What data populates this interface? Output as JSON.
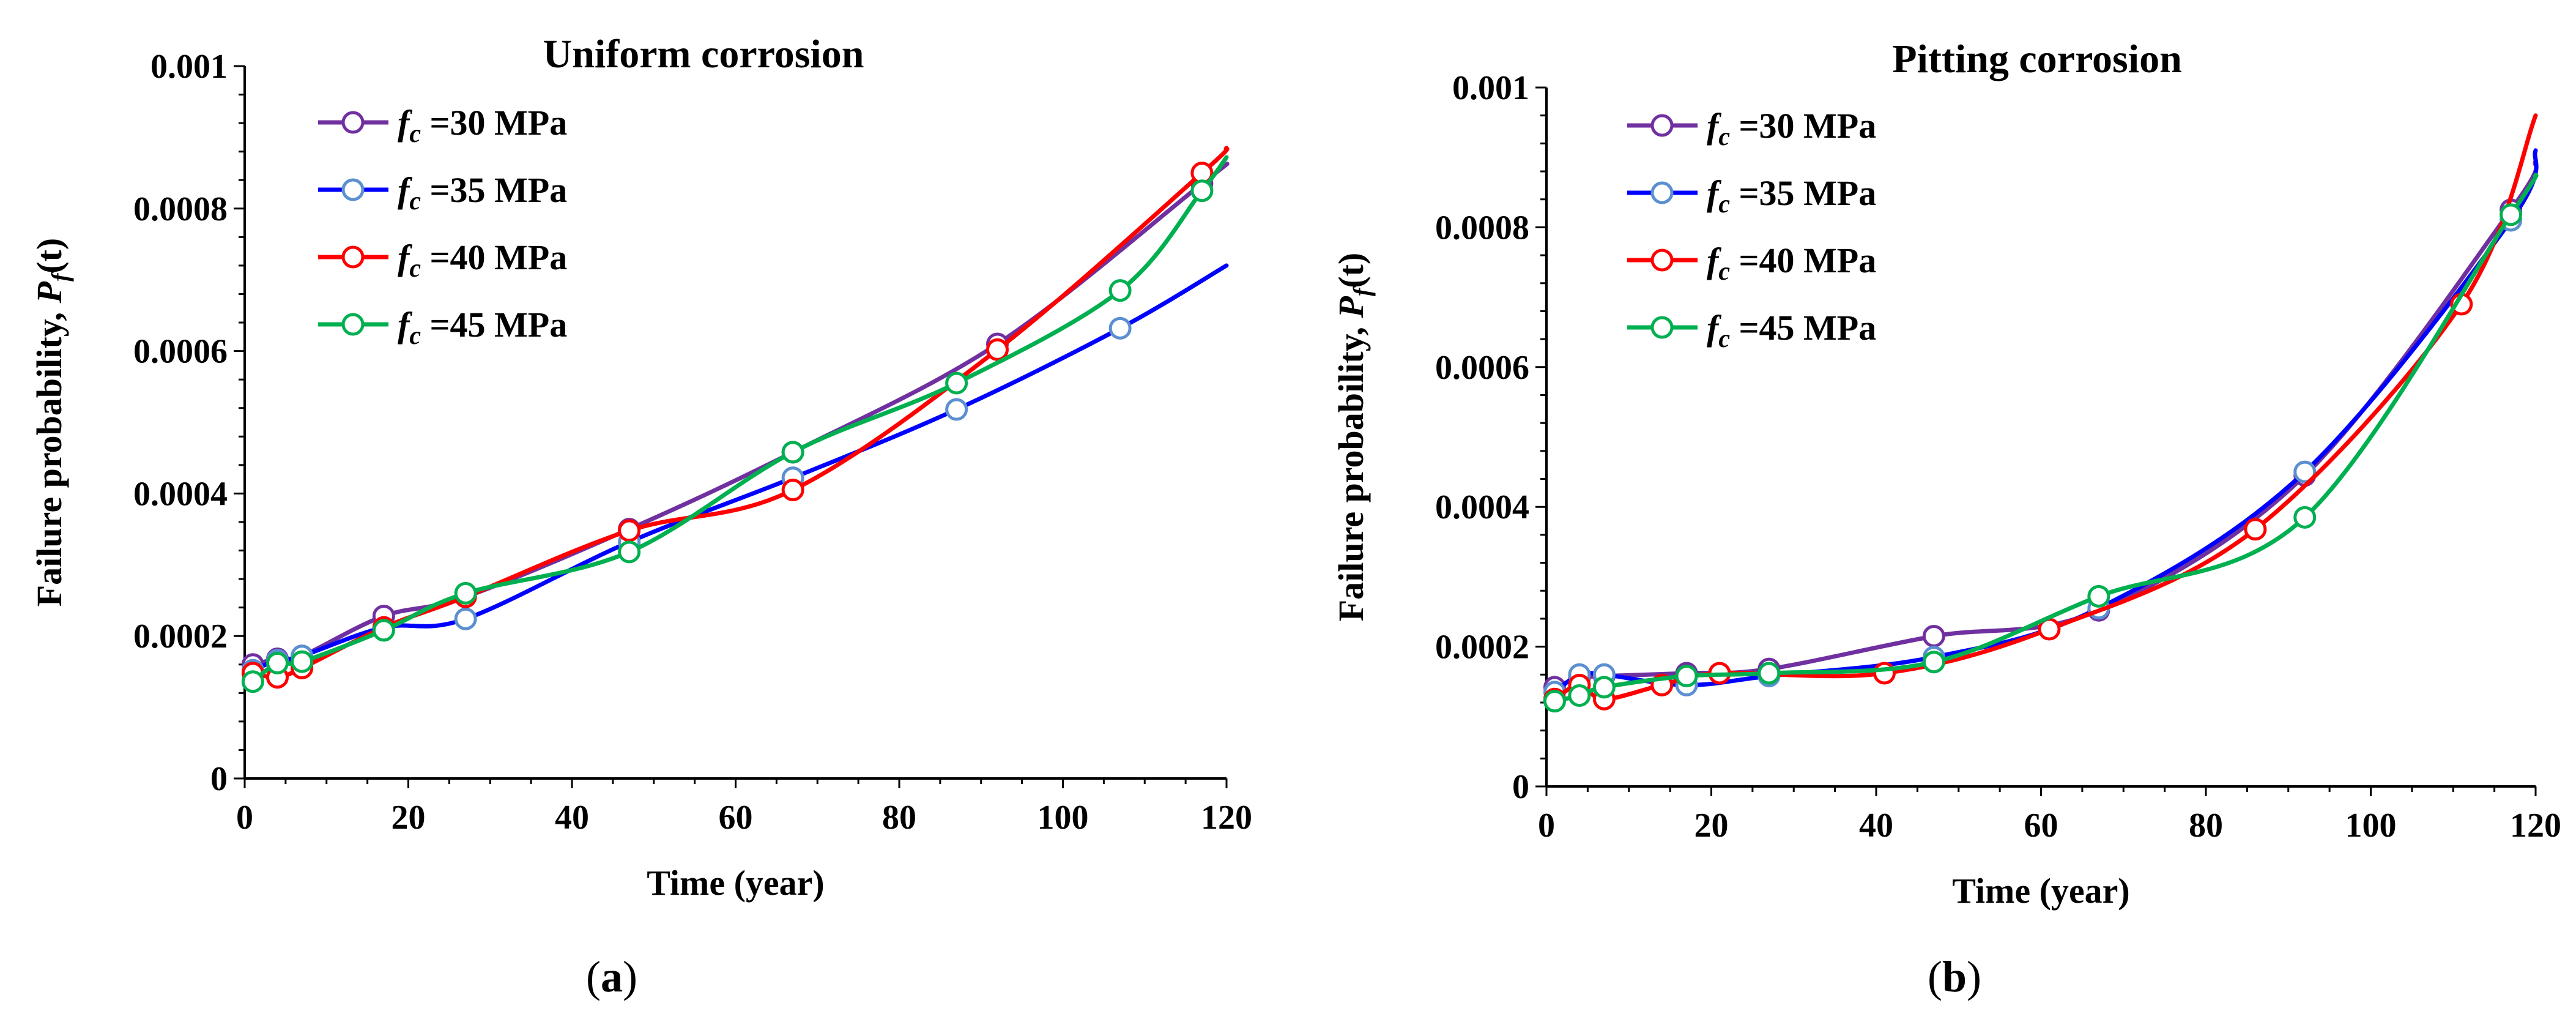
{
  "chart_data": [
    {
      "type": "line",
      "panel_label": "(a)",
      "title": "Uniform corrosion",
      "xlabel": "Time (year)",
      "ylabel_main": "Failure probability, ",
      "ylabel_symbol": "P",
      "ylabel_sub": "f",
      "ylabel_arg": "(t)",
      "xlim": [
        0,
        120
      ],
      "ylim": [
        0,
        0.001
      ],
      "x_ticks": [
        "0",
        "20",
        "40",
        "60",
        "80",
        "100",
        "120"
      ],
      "y_ticks": [
        "0",
        "0.0002",
        "0.0004",
        "0.0006",
        "0.0008",
        "0.001"
      ],
      "legend_position": "top-left",
      "series": [
        {
          "name_symbol": "f",
          "name_sub": "c",
          "name_value": " =30 MPa",
          "color": "#7030a0",
          "x": [
            1,
            4,
            7,
            17,
            27,
            47,
            67,
            92,
            117
          ],
          "y": [
            0.00016,
            0.000168,
            0.000172,
            0.000228,
            0.000255,
            0.00035,
            0.000458,
            0.00061,
            0.000835
          ],
          "line_end": [
            120,
            0.000862
          ]
        },
        {
          "name_symbol": "f",
          "name_sub": "c",
          "name_value": " =35 MPa",
          "color": "#0000ff",
          "marker_color": "#5b8fd0",
          "x": [
            1,
            4,
            7,
            17,
            27,
            47,
            67,
            87,
            107
          ],
          "y": [
            0.000152,
            0.000166,
            0.000172,
            0.000212,
            0.000224,
            0.000332,
            0.000422,
            0.000518,
            0.000632
          ],
          "line_end": [
            120,
            0.00072
          ]
        },
        {
          "name_symbol": "f",
          "name_sub": "c",
          "name_value": " =40 MPa",
          "color": "#ff0000",
          "x": [
            1,
            4,
            7,
            17,
            27,
            47,
            67,
            92,
            117
          ],
          "y": [
            0.000148,
            0.000142,
            0.000155,
            0.000212,
            0.000255,
            0.000348,
            0.000405,
            0.000602,
            0.00085
          ],
          "line_end": [
            120,
            0.000885
          ]
        },
        {
          "name_symbol": "f",
          "name_sub": "c",
          "name_value": " =45 MPa",
          "color": "#00b050",
          "x": [
            1,
            4,
            7,
            17,
            27,
            47,
            67,
            87,
            107,
            117
          ],
          "y": [
            0.000136,
            0.000162,
            0.000164,
            0.000208,
            0.00026,
            0.000318,
            0.000458,
            0.000555,
            0.000685,
            0.000825
          ],
          "line_end": [
            120,
            0.000872
          ]
        }
      ]
    },
    {
      "type": "line",
      "panel_label": "(b)",
      "title": "Pitting corrosion",
      "xlabel": "Time (year)",
      "ylabel_main": "Failure probability, ",
      "ylabel_symbol": "P",
      "ylabel_sub": "f",
      "ylabel_arg": "(t)",
      "xlim": [
        0,
        120
      ],
      "ylim": [
        0,
        0.001
      ],
      "x_ticks": [
        "0",
        "20",
        "40",
        "60",
        "80",
        "100",
        "120"
      ],
      "y_ticks": [
        "0",
        "0.0002",
        "0.0004",
        "0.0006",
        "0.0008",
        "0.001"
      ],
      "legend_position": "top-left",
      "series": [
        {
          "name_symbol": "f",
          "name_sub": "c",
          "name_value": " =30 MPa",
          "color": "#7030a0",
          "x": [
            1,
            4,
            7,
            17,
            27,
            47,
            67,
            92,
            117
          ],
          "y": [
            0.000142,
            0.000155,
            0.000158,
            0.000162,
            0.000168,
            0.000215,
            0.000252,
            0.000445,
            0.000825
          ],
          "line_end": [
            120,
            0.000895
          ]
        },
        {
          "name_symbol": "f",
          "name_sub": "c",
          "name_value": " =35 MPa",
          "color": "#0000ff",
          "marker_color": "#5b8fd0",
          "x": [
            1,
            4,
            7,
            17,
            27,
            47,
            67,
            92,
            117
          ],
          "y": [
            0.000135,
            0.00016,
            0.00016,
            0.000145,
            0.000158,
            0.000185,
            0.000255,
            0.00045,
            0.00081
          ],
          "line_end": [
            120,
            0.00091
          ]
        },
        {
          "name_symbol": "f",
          "name_sub": "c",
          "name_value": " =40 MPa",
          "color": "#ff0000",
          "x": [
            1,
            4,
            7,
            14,
            21,
            41,
            61,
            86,
            111
          ],
          "y": [
            0.000125,
            0.000145,
            0.000125,
            0.000145,
            0.000162,
            0.000162,
            0.000225,
            0.000368,
            0.00069
          ],
          "line_end": [
            120,
            0.00096
          ]
        },
        {
          "name_symbol": "f",
          "name_sub": "c",
          "name_value": " =45 MPa",
          "color": "#00b050",
          "x": [
            1,
            4,
            7,
            17,
            27,
            47,
            67,
            92,
            117
          ],
          "y": [
            0.000122,
            0.00013,
            0.000142,
            0.000158,
            0.000162,
            0.000178,
            0.000272,
            0.000385,
            0.000818
          ],
          "line_end": [
            120,
            0.000875
          ]
        }
      ]
    }
  ]
}
